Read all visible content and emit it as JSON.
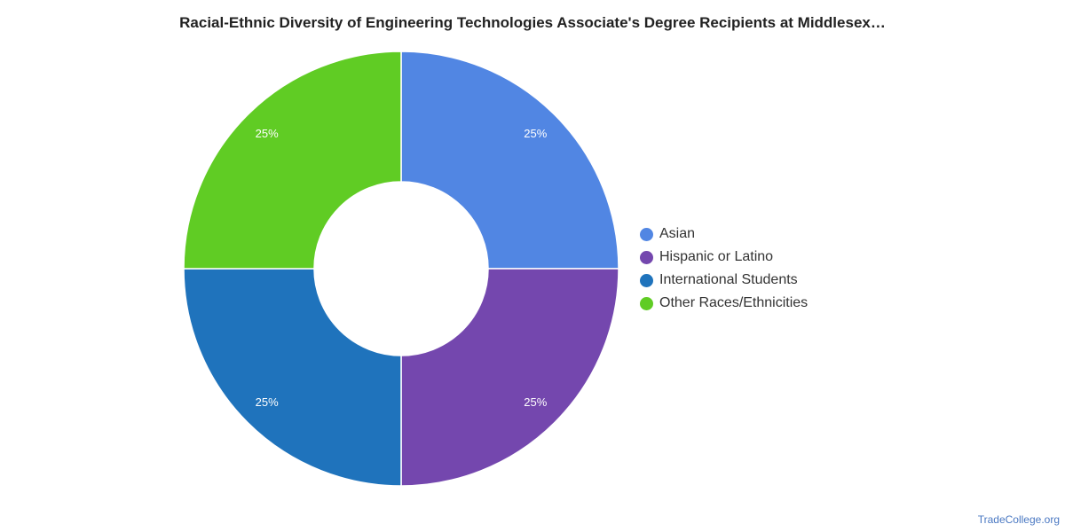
{
  "chart_data": {
    "type": "pie",
    "variant": "donut",
    "title": "Racial-Ethnic Diversity of Engineering Technologies Associate's Degree Recipients at Middlesex…",
    "slices": [
      {
        "name": "Asian",
        "value": 25,
        "label": "25%",
        "color": "#5186e3"
      },
      {
        "name": "Hispanic or Latino",
        "value": 25,
        "label": "25%",
        "color": "#7447ae"
      },
      {
        "name": "International Students",
        "value": 25,
        "label": "25%",
        "color": "#1f73bc"
      },
      {
        "name": "Other Races/Ethnicities",
        "value": 25,
        "label": "25%",
        "color": "#60cc24"
      }
    ],
    "legend_position": "right"
  },
  "source": "TradeCollege.org"
}
